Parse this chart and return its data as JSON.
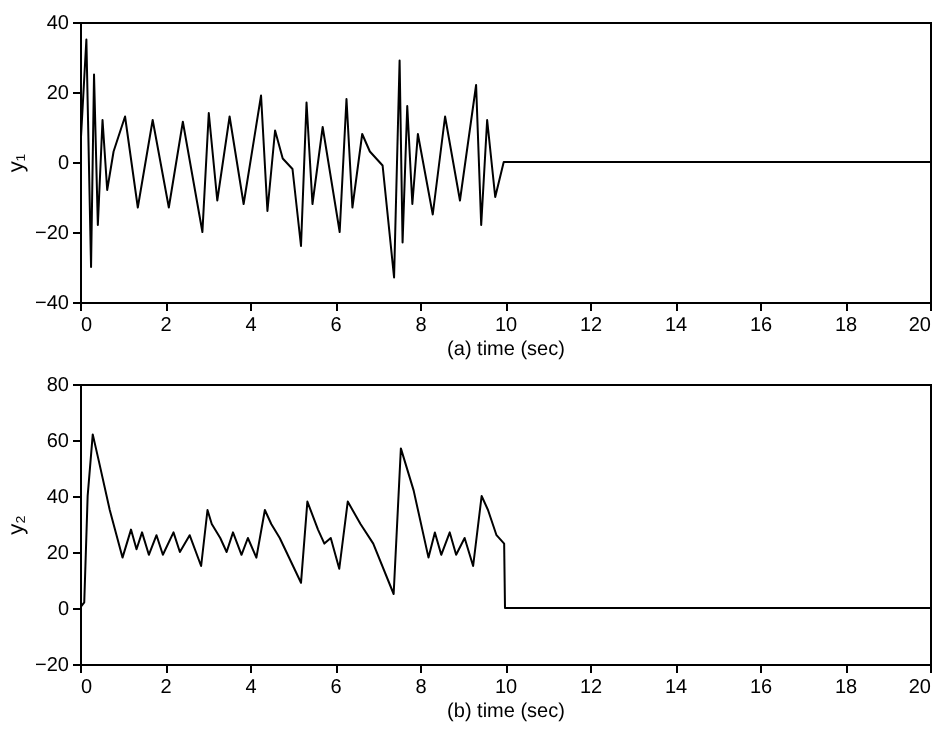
{
  "chart_data": [
    {
      "type": "line",
      "xlabel": "(a) time (sec)",
      "ylabel": "y₁",
      "xlim": [
        0,
        20
      ],
      "xticks": [
        0,
        2,
        4,
        6,
        8,
        10,
        12,
        14,
        16,
        18,
        20
      ],
      "ylim": [
        -40,
        40
      ],
      "yticks": [
        -40,
        -20,
        0,
        20,
        40
      ],
      "grid": false,
      "series": [
        {
          "color": "#000000",
          "x": [
            0,
            0.15,
            0.26,
            0.33,
            0.42,
            0.53,
            0.64,
            0.79,
            1.06,
            1.36,
            1.71,
            2.09,
            2.42,
            2.88,
            3.03,
            3.23,
            3.52,
            3.85,
            4.26,
            4.41,
            4.59,
            4.77,
            5.0,
            5.2,
            5.33,
            5.47,
            5.71,
            6.11,
            6.27,
            6.41,
            6.64,
            6.82,
            7.12,
            7.39,
            7.52,
            7.59,
            7.7,
            7.82,
            7.95,
            8.3,
            8.59,
            8.94,
            9.32,
            9.44,
            9.58,
            9.77,
            9.97,
            10,
            20
          ],
          "values": [
            2,
            35,
            -30,
            25,
            -18,
            12,
            -8,
            3,
            13,
            -13,
            12,
            -13,
            11.5,
            -20,
            14,
            -11,
            13,
            -12,
            19,
            -14,
            9,
            1,
            -2,
            -24,
            17,
            -12,
            10,
            -20,
            18,
            -13,
            8,
            3,
            -1,
            -33,
            29,
            -23,
            16,
            -12,
            8,
            -15,
            13,
            -11,
            22,
            -18,
            12,
            -10,
            0,
            0,
            0
          ]
        }
      ]
    },
    {
      "type": "line",
      "xlabel": "(b) time (sec)",
      "ylabel": "y₂",
      "xlim": [
        0,
        20
      ],
      "xticks": [
        0,
        2,
        4,
        6,
        8,
        10,
        12,
        14,
        16,
        18,
        20
      ],
      "ylim": [
        -20,
        80
      ],
      "yticks": [
        -20,
        0,
        20,
        40,
        60,
        80
      ],
      "grid": false,
      "series": [
        {
          "color": "#000000",
          "x": [
            0,
            0.1,
            0.18,
            0.3,
            0.45,
            0.7,
            1.0,
            1.2,
            1.33,
            1.46,
            1.62,
            1.8,
            1.95,
            2.2,
            2.35,
            2.58,
            2.85,
            3.0,
            3.1,
            3.3,
            3.45,
            3.6,
            3.8,
            3.95,
            4.15,
            4.35,
            4.5,
            4.7,
            5.2,
            5.35,
            5.6,
            5.75,
            5.9,
            6.1,
            6.3,
            6.6,
            6.9,
            7.38,
            7.55,
            7.85,
            8.2,
            8.35,
            8.5,
            8.7,
            8.85,
            9.05,
            9.25,
            9.45,
            9.6,
            9.8,
            9.98,
            10.0,
            20
          ],
          "values": [
            0,
            2,
            40,
            62,
            52,
            35,
            18,
            28,
            21,
            27,
            19,
            26,
            19,
            27,
            20,
            26,
            15,
            35,
            30,
            25,
            20,
            27,
            19,
            25,
            18,
            35,
            30,
            25,
            9,
            38,
            28,
            23,
            25,
            14,
            38,
            30,
            23,
            5,
            57,
            42,
            18,
            27,
            19,
            27,
            19,
            25,
            15,
            40,
            35,
            26,
            23,
            0,
            0
          ]
        }
      ]
    }
  ]
}
